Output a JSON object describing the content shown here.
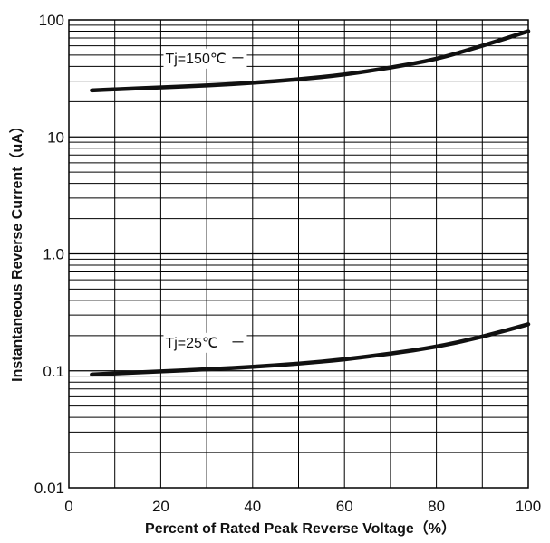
{
  "chart_data": {
    "type": "line",
    "xlabel": "Percent of Rated Peak Reverse Voltage（%）",
    "ylabel": "Instantaneous Reverse Current（uA）",
    "xlim": [
      0,
      100
    ],
    "ylim": [
      0.01,
      100
    ],
    "yscale": "log",
    "grid": true,
    "x_ticks": [
      "0",
      "20",
      "40",
      "60",
      "80",
      "100"
    ],
    "y_ticks": [
      "0.01",
      "0.1",
      "1.0",
      "10",
      "100"
    ],
    "series": [
      {
        "name": "Tj=150℃",
        "x": [
          5,
          10,
          20,
          30,
          40,
          50,
          60,
          70,
          80,
          90,
          100
        ],
        "y": [
          25,
          25.5,
          26.5,
          27.5,
          29,
          31,
          34,
          39,
          46,
          60,
          80
        ]
      },
      {
        "name": "Tj=25℃",
        "x": [
          5,
          10,
          20,
          30,
          40,
          50,
          60,
          70,
          80,
          90,
          100
        ],
        "y": [
          0.093,
          0.095,
          0.099,
          0.103,
          0.108,
          0.115,
          0.125,
          0.14,
          0.16,
          0.195,
          0.25
        ]
      }
    ]
  }
}
